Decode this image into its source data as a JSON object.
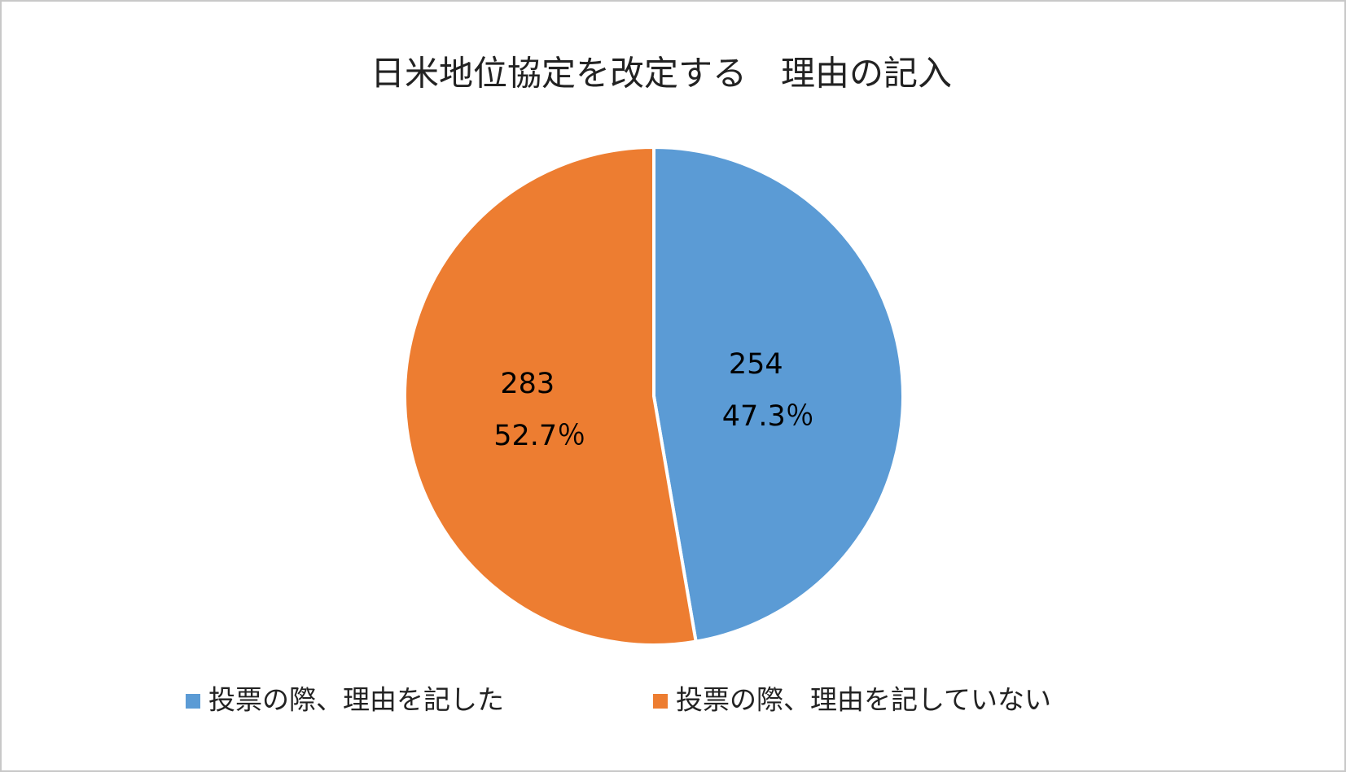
{
  "chart_data": {
    "type": "pie",
    "title": "日米地位協定を改定する　理由の記入",
    "categories": [
      "投票の際、理由を記した",
      "投票の際、理由を記していない"
    ],
    "values": [
      254,
      283
    ],
    "percentages": [
      47.3,
      52.7
    ],
    "percentage_labels": [
      "47.3％",
      "52.7％"
    ],
    "colors": [
      "#5b9bd5",
      "#ed7d31"
    ],
    "legend": "bottom"
  }
}
